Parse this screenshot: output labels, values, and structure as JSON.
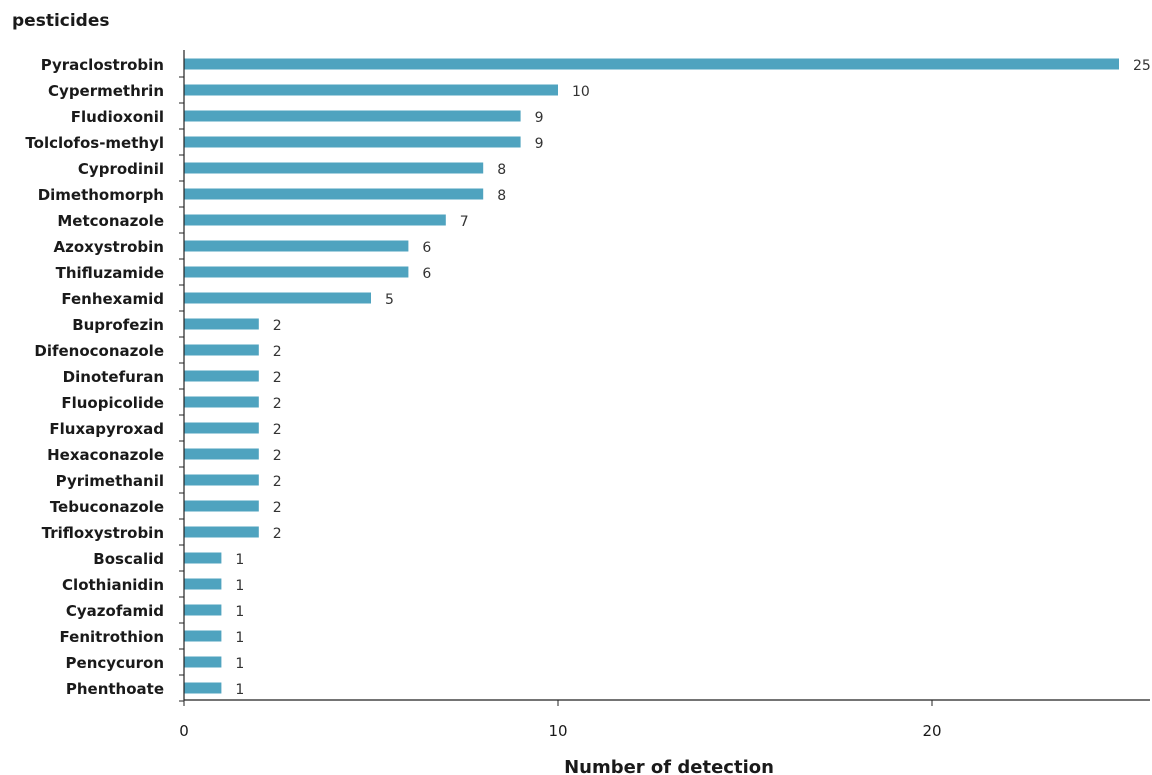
{
  "chart_data": {
    "type": "bar",
    "orientation": "horizontal",
    "title": "",
    "ylabel": "pesticides",
    "xlabel": "Number of detection",
    "xlim": [
      0,
      26
    ],
    "xticks": [
      0,
      10,
      20
    ],
    "grid": false,
    "bar_color": "#4fa3bf",
    "categories": [
      "Pyraclostrobin",
      "Cypermethrin",
      "Fludioxonil",
      "Tolclofos-methyl",
      "Cyprodinil",
      "Dimethomorph",
      "Metconazole",
      "Azoxystrobin",
      "Thifluzamide",
      "Fenhexamid",
      "Buprofezin",
      "Difenoconazole",
      "Dinotefuran",
      "Fluopicolide",
      "Fluxapyroxad",
      "Hexaconazole",
      "Pyrimethanil",
      "Tebuconazole",
      "Trifloxystrobin",
      "Boscalid",
      "Clothianidin",
      "Cyazofamid",
      "Fenitrothion",
      "Pencycuron",
      "Phenthoate"
    ],
    "values": [
      25,
      10,
      9,
      9,
      8,
      8,
      7,
      6,
      6,
      5,
      2,
      2,
      2,
      2,
      2,
      2,
      2,
      2,
      2,
      1,
      1,
      1,
      1,
      1,
      1
    ]
  }
}
